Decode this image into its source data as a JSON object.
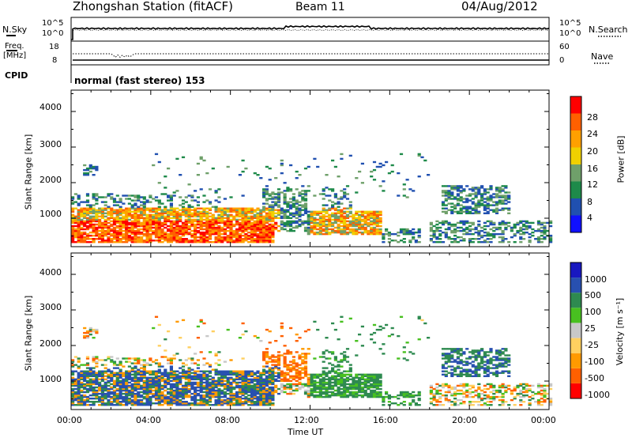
{
  "header": {
    "station": "Zhongshan Station (fitACF)",
    "beam": "Beam 11",
    "date": "04/Aug/2012",
    "cpid_label": "CPID",
    "mode": "normal (fast stereo) 153"
  },
  "noise_panel": {
    "left_label": "N.Sky",
    "right_label": "N.Search",
    "left_ticks": [
      "10^5",
      "10^0"
    ],
    "right_ticks": [
      "10^5",
      "10^0"
    ],
    "right_legend_style": "dotted"
  },
  "freq_panel": {
    "left_label_1": "Freq.",
    "left_label_2": "[MHz]",
    "right_label": "Nave",
    "left_ticks": [
      "18",
      "8"
    ],
    "right_ticks": [
      "60",
      "0"
    ],
    "right_legend_style": "dotted"
  },
  "colors": {
    "power_scale": [
      "#1010ff",
      "#2050b0",
      "#1e8a4a",
      "#6fa06a",
      "#f0d000",
      "#ffa000",
      "#ff6000",
      "#ff0000"
    ],
    "velocity_scale": [
      "#ff0000",
      "#ff6000",
      "#ff9a00",
      "#ffd060",
      "#c8c8c8",
      "#48c020",
      "#2e8a50",
      "#2850b0",
      "#1818c0"
    ]
  },
  "chart_data": [
    {
      "type": "heatmap",
      "name": "power-panel",
      "ylabel": "Slant Range [km]",
      "yticks": [
        "1000",
        "2000",
        "3000",
        "4000"
      ],
      "ylim": [
        200,
        4600
      ],
      "xlim": [
        0,
        24
      ],
      "colorbar_label": "Power [dB]",
      "colorbar_ticks": [
        "4",
        "8",
        "12",
        "16",
        "20",
        "24",
        "28"
      ],
      "colorbar_range": [
        0,
        32
      ]
    },
    {
      "type": "heatmap",
      "name": "velocity-panel",
      "ylabel": "Slant Range [km]",
      "yticks": [
        "1000",
        "2000",
        "3000",
        "4000"
      ],
      "ylim": [
        200,
        4600
      ],
      "xlim": [
        0,
        24
      ],
      "xticks": [
        "00:00",
        "04:00",
        "08:00",
        "12:00",
        "16:00",
        "20:00",
        "00:00"
      ],
      "xlabel": "Time UT",
      "colorbar_label": "Velocity [m s⁻¹]",
      "colorbar_ticks": [
        "-1000",
        "-500",
        "-100",
        "-25",
        "25",
        "100",
        "500",
        "1000"
      ]
    }
  ]
}
